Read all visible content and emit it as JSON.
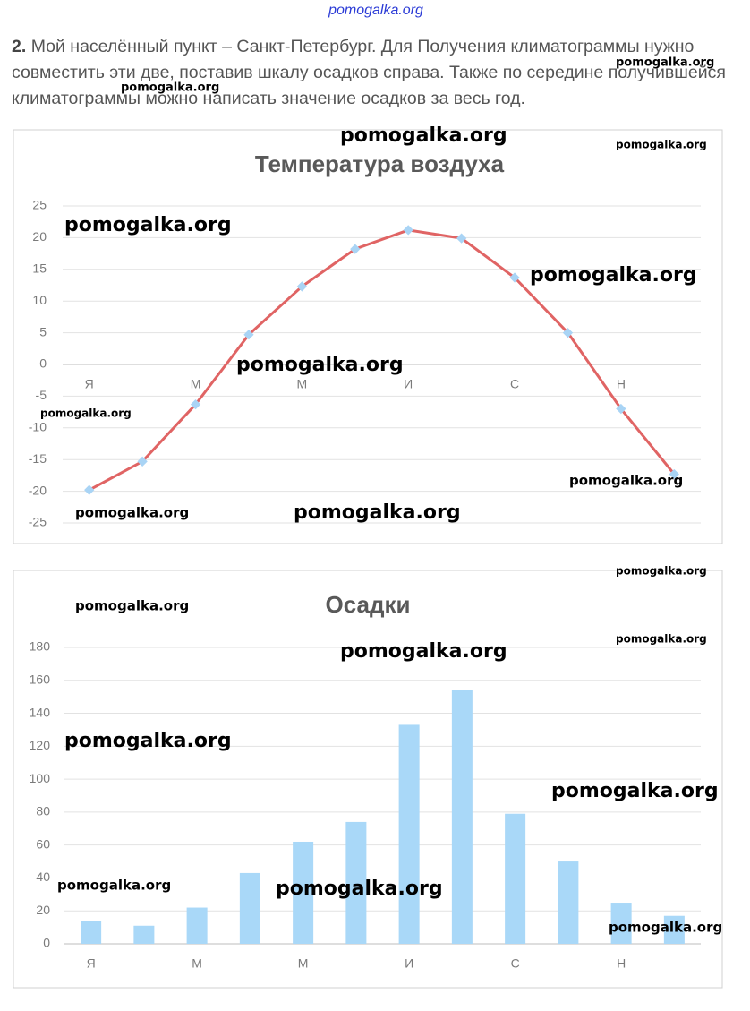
{
  "header": {
    "site": "pomogalka.org"
  },
  "task": {
    "number": "2.",
    "text": "Мой населённый пункт – Санкт-Петербург. Для Получения климатограммы нужно совместить эти две, поставив шкалу осадков справа. Также по середине получившейся климатограммы можно написать значение осадков за весь год."
  },
  "chart_data": [
    {
      "type": "line",
      "title": "Температура воздуха",
      "categories": [
        "Я",
        null,
        "М",
        null,
        "М",
        null,
        "И",
        null,
        "С",
        null,
        "Н",
        null
      ],
      "values": [
        -19.8,
        -15.3,
        -6.3,
        4.7,
        12.3,
        18.2,
        21.2,
        19.9,
        13.7,
        5.0,
        -7.0,
        -17.3
      ],
      "color": "#e06464",
      "marker_color": "#a9d4f5",
      "ylim": [
        -25,
        25
      ],
      "yticks": [
        -25,
        -20,
        -15,
        -10,
        -5,
        0,
        5,
        10,
        15,
        20,
        25
      ],
      "grid": true
    },
    {
      "type": "bar",
      "title": "Осадки",
      "categories": [
        "Я",
        null,
        "М",
        null,
        "М",
        null,
        "И",
        null,
        "С",
        null,
        "Н",
        null
      ],
      "values": [
        14,
        11,
        22,
        43,
        62,
        74,
        133,
        154,
        79,
        50,
        25,
        17
      ],
      "color": "#a9d8f8",
      "ylim": [
        0,
        180
      ],
      "yticks": [
        0,
        20,
        40,
        60,
        80,
        100,
        120,
        140,
        160,
        180
      ],
      "grid": true
    }
  ],
  "watermarks": [
    "pomogalka.org",
    "pomogalka.org",
    "pomogalka.org",
    "pomogalka.org",
    "pomogalka.org",
    "pomogalka.org",
    "pomogalka.org",
    "pomogalka.org",
    "pomogalka.org",
    "pomogalka.org",
    "pomogalka.org",
    "pomogalka.org",
    "pomogalka.org",
    "pomogalka.org",
    "pomogalka.org",
    "pomogalka.org",
    "pomogalka.org",
    "pomogalka.org",
    "pomogalka.org",
    "pomogalka.org"
  ]
}
